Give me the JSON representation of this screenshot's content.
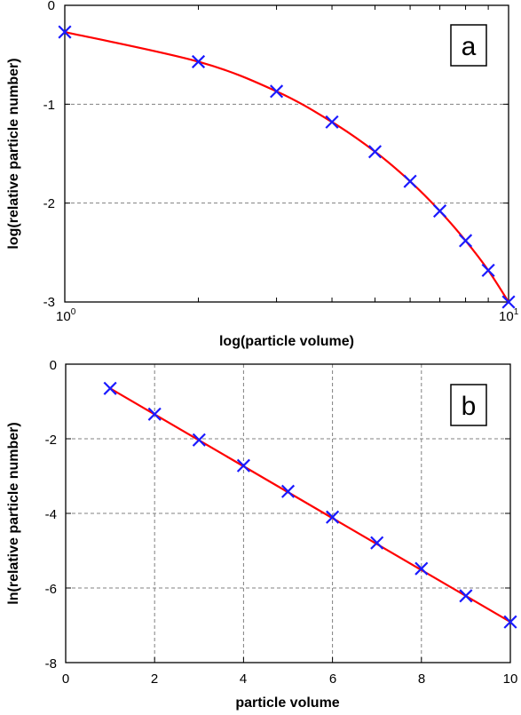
{
  "chart_data": [
    {
      "type": "line",
      "panel_label": "a",
      "xlabel": "log(particle volume)",
      "ylabel": "log(relative particle number)",
      "x_scale": "log",
      "xlim": [
        1,
        10
      ],
      "ylim": [
        -3,
        0
      ],
      "x_tick_labels": [
        {
          "base": "10",
          "exp": "0"
        },
        {
          "base": "10",
          "exp": "1"
        }
      ],
      "y_ticks": [
        0,
        -1,
        -2,
        -3
      ],
      "y_tick_labels": [
        "0",
        "-1",
        "-2",
        "-3"
      ],
      "grid": "horizontal-dashed",
      "series": [
        {
          "style": "markers",
          "x": [
            1,
            2,
            3,
            4,
            5,
            6,
            7,
            8,
            9,
            10
          ],
          "y": [
            -0.27,
            -0.57,
            -0.87,
            -1.18,
            -1.48,
            -1.78,
            -2.08,
            -2.38,
            -2.68,
            -3.0
          ]
        },
        {
          "style": "line",
          "x": [
            1,
            2,
            3,
            4,
            5,
            6,
            7,
            8,
            9,
            10
          ],
          "y": [
            -0.27,
            -0.57,
            -0.87,
            -1.18,
            -1.48,
            -1.78,
            -2.08,
            -2.38,
            -2.68,
            -3.0
          ]
        }
      ]
    },
    {
      "type": "line",
      "panel_label": "b",
      "xlabel": "particle volume",
      "ylabel": "ln(relative particle number)",
      "x_scale": "linear",
      "xlim": [
        0,
        10
      ],
      "ylim": [
        -8,
        0
      ],
      "x_ticks": [
        0,
        2,
        4,
        6,
        8,
        10
      ],
      "x_tick_labels": [
        "0",
        "2",
        "4",
        "6",
        "8",
        "10"
      ],
      "y_ticks": [
        0,
        -2,
        -4,
        -6,
        -8
      ],
      "y_tick_labels": [
        "0",
        "-2",
        "-4",
        "-6",
        "-8"
      ],
      "grid": "both-dashed",
      "series": [
        {
          "style": "markers",
          "x": [
            1,
            2,
            3,
            4,
            5,
            6,
            7,
            8,
            9,
            10
          ],
          "y": [
            -0.65,
            -1.34,
            -2.03,
            -2.72,
            -3.41,
            -4.1,
            -4.79,
            -5.48,
            -6.21,
            -6.91
          ]
        },
        {
          "style": "line",
          "x": [
            1,
            10
          ],
          "y": [
            -0.65,
            -6.91
          ]
        }
      ]
    }
  ],
  "colors": {
    "markers": "#1a1aff",
    "fit_line": "#ff0000",
    "grid": "#808080",
    "frame": "#000000"
  }
}
